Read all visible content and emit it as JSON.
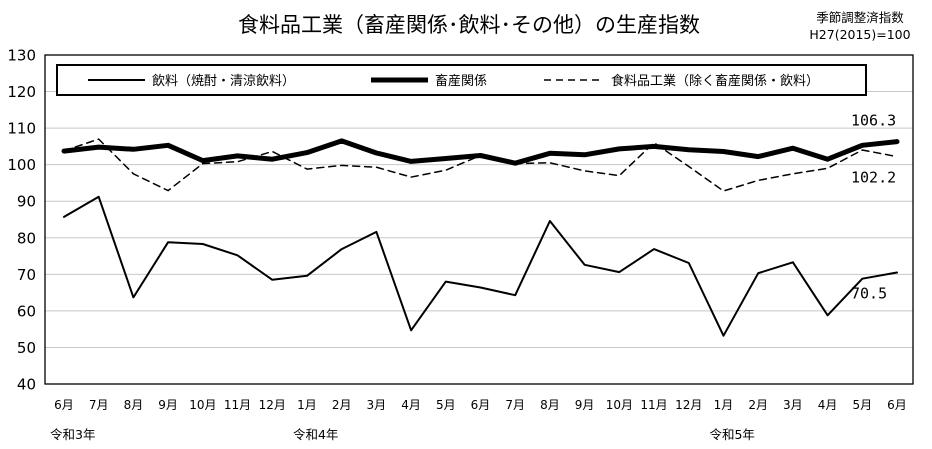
{
  "chart_data": {
    "type": "line",
    "title": "食料品工業（畜産関係･飲料･その他）の生産指数",
    "note_line1": "季節調整済指数",
    "note_line2": "H27(2015)=100",
    "ylim": [
      40,
      130
    ],
    "yticks": [
      "130",
      "120",
      "110",
      "100",
      "90",
      "80",
      "70",
      "60",
      "50",
      "40"
    ],
    "grid": "horizontal",
    "legend_position": "top",
    "categories": [
      "6月",
      "7月",
      "8月",
      "9月",
      "10月",
      "11月",
      "12月",
      "1月",
      "2月",
      "3月",
      "4月",
      "5月",
      "6月",
      "7月",
      "8月",
      "9月",
      "10月",
      "11月",
      "12月",
      "1月",
      "2月",
      "3月",
      "4月",
      "5月",
      "6月"
    ],
    "era_labels": [
      {
        "index": 0,
        "text": "令和3年"
      },
      {
        "index": 7,
        "text": "令和4年"
      },
      {
        "index": 19,
        "text": "令和5年"
      }
    ],
    "series": [
      {
        "name": "飲料（焼酎・清涼飲料）",
        "style": "thin-solid",
        "values": [
          85.7,
          91.2,
          63.7,
          78.8,
          78.3,
          75.2,
          68.5,
          69.6,
          76.9,
          81.6,
          54.7,
          68.0,
          66.4,
          64.3,
          84.6,
          72.6,
          70.6,
          76.9,
          73.1,
          53.2,
          70.3,
          73.3,
          58.8,
          68.8,
          70.5
        ]
      },
      {
        "name": "畜産関係",
        "style": "thick-solid",
        "values": [
          103.7,
          104.8,
          104.2,
          105.3,
          101.1,
          102.4,
          101.5,
          103.3,
          106.5,
          103.2,
          100.9,
          101.7,
          102.5,
          100.4,
          103.1,
          102.7,
          104.3,
          105.0,
          104.1,
          103.6,
          102.2,
          104.5,
          101.5,
          105.3,
          106.3
        ]
      },
      {
        "name": "食料品工業（除く畜産関係・飲料）",
        "style": "dashed",
        "values": [
          103.8,
          107.0,
          97.5,
          92.9,
          100.3,
          100.8,
          103.6,
          98.8,
          99.8,
          99.3,
          96.6,
          98.5,
          102.5,
          100.3,
          100.5,
          98.3,
          97.0,
          106.0,
          99.5,
          92.8,
          95.7,
          97.5,
          99.0,
          104.0,
          102.2
        ]
      }
    ],
    "data_labels": [
      {
        "series": 1,
        "index": 24,
        "text": "106.3",
        "placement": "above"
      },
      {
        "series": 2,
        "index": 24,
        "text": "102.2",
        "placement": "below"
      },
      {
        "series": 0,
        "index": 24,
        "text": "70.5",
        "placement": "below"
      }
    ]
  }
}
